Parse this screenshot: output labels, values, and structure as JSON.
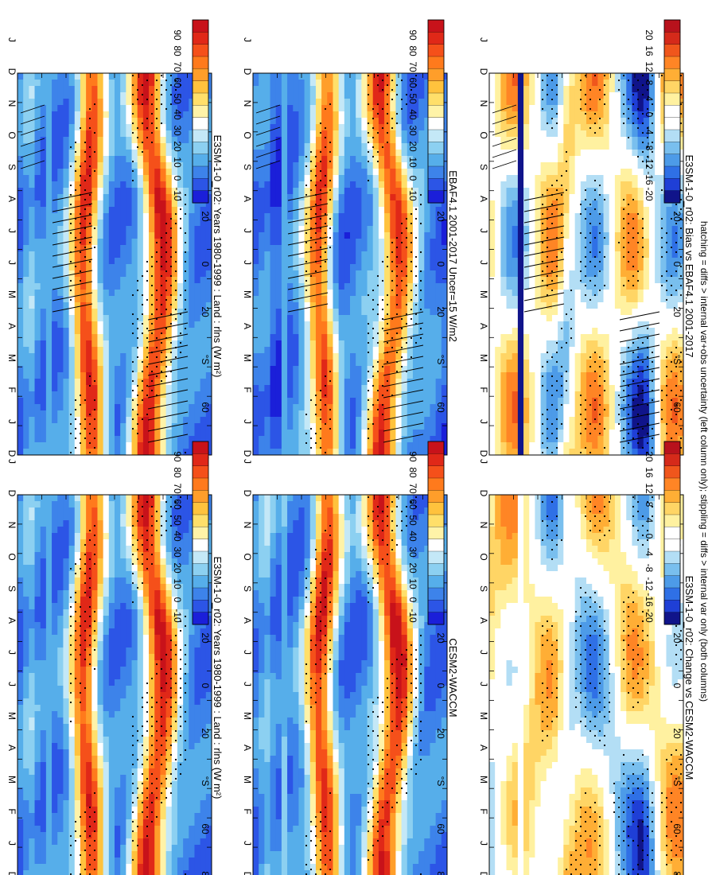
{
  "figure": {
    "footnote": "hatching = diffs > internal var+obs uncertainty (left column only); stippling = diffs > internal var only (both columns)"
  },
  "chart_data": [
    {
      "id": "model-left",
      "type": "heatmap",
      "title": "E3SM-1-0_r02: Years 1980-1999 : Land : rlns (W m²)",
      "xlabel": "month",
      "ylabel": "latitude",
      "months": [
        "D",
        "J",
        "F",
        "M",
        "A",
        "M",
        "J",
        "J",
        "A",
        "S",
        "O",
        "N",
        "D",
        "J"
      ],
      "lat_ticks": [
        "80",
        "60",
        "°N",
        "20",
        "0",
        "20",
        "°S",
        "60",
        "80"
      ],
      "colorbar": {
        "labels": [
          "90",
          "80",
          "70",
          "60",
          "50",
          "40",
          "30",
          "20",
          "10",
          "0",
          "-10"
        ],
        "range": [
          -15,
          100
        ]
      },
      "field": "mean",
      "stippling": true,
      "hatching": true
    },
    {
      "id": "obs-left",
      "type": "heatmap",
      "title": "EBAF4.1 2001-2017 Uncer=15 W/m2",
      "xlabel": "month",
      "ylabel": "latitude",
      "months": [
        "D",
        "J",
        "F",
        "M",
        "A",
        "M",
        "J",
        "J",
        "A",
        "S",
        "O",
        "N",
        "D",
        "J"
      ],
      "lat_ticks": [
        "80",
        "60",
        "°N",
        "20",
        "0",
        "20",
        "°S",
        "60",
        "80"
      ],
      "colorbar": {
        "labels": [
          "90",
          "80",
          "70",
          "60",
          "50",
          "40",
          "30",
          "20",
          "10",
          "0",
          "-10"
        ],
        "range": [
          -15,
          100
        ]
      },
      "field": "mean",
      "stippling": true,
      "hatching": true
    },
    {
      "id": "bias-left",
      "type": "heatmap",
      "title": "E3SM-1-0_r02: Bias vs EBAF4.1 2001-2017",
      "xlabel": "month",
      "ylabel": "latitude",
      "months": [
        "D",
        "J",
        "F",
        "M",
        "A",
        "M",
        "J",
        "J",
        "A",
        "S",
        "O",
        "N",
        "D",
        "J"
      ],
      "lat_ticks": [
        "80",
        "60",
        "°N",
        "20",
        "0",
        "20",
        "°S",
        "60",
        "80"
      ],
      "colorbar": {
        "labels": [
          "20",
          "16",
          "12",
          "8",
          "4",
          "0",
          "-4",
          "-8",
          "-12",
          "-16",
          "-20"
        ],
        "range": [
          -24,
          24
        ]
      },
      "field": "diff",
      "stippling": true,
      "hatching": true
    },
    {
      "id": "model-right",
      "type": "heatmap",
      "title": "E3SM-1-0_r02: Years 1980-1999 : Land : rlns (W m²)",
      "xlabel": "month",
      "ylabel": "latitude",
      "months": [
        "D",
        "J",
        "F",
        "M",
        "A",
        "M",
        "J",
        "J",
        "A",
        "S",
        "O",
        "N",
        "D",
        "J"
      ],
      "lat_ticks": [
        "80",
        "60",
        "°N",
        "20",
        "0",
        "20",
        "°S",
        "60",
        "80"
      ],
      "colorbar": {
        "labels": [
          "90",
          "80",
          "70",
          "60",
          "50",
          "40",
          "30",
          "20",
          "10",
          "0",
          "-10"
        ],
        "range": [
          -15,
          100
        ]
      },
      "field": "mean",
      "stippling": true,
      "hatching": false
    },
    {
      "id": "ref-right",
      "type": "heatmap",
      "title": "CESM2-WACCM",
      "xlabel": "month",
      "ylabel": "latitude",
      "months": [
        "D",
        "J",
        "F",
        "M",
        "A",
        "M",
        "J",
        "J",
        "A",
        "S",
        "O",
        "N",
        "D",
        "J"
      ],
      "lat_ticks": [
        "80",
        "60",
        "°N",
        "20",
        "0",
        "20",
        "°S",
        "60",
        "80"
      ],
      "colorbar": {
        "labels": [
          "90",
          "80",
          "70",
          "60",
          "50",
          "40",
          "30",
          "20",
          "10",
          "0",
          "-10"
        ],
        "range": [
          -15,
          100
        ]
      },
      "field": "mean",
      "stippling": true,
      "hatching": false
    },
    {
      "id": "change-right",
      "type": "heatmap",
      "title": "E3SM-1-0_r02: Change vs CESM2-WACCM",
      "xlabel": "month",
      "ylabel": "latitude",
      "months": [
        "D",
        "J",
        "F",
        "M",
        "A",
        "M",
        "J",
        "J",
        "A",
        "S",
        "O",
        "N",
        "D",
        "J"
      ],
      "lat_ticks": [
        "80",
        "60",
        "°N",
        "20",
        "0",
        "20",
        "°S",
        "60",
        "80"
      ],
      "colorbar": {
        "labels": [
          "20",
          "16",
          "12",
          "8",
          "4",
          "0",
          "-4",
          "-8",
          "-12",
          "-16",
          "-20"
        ],
        "range": [
          -24,
          24
        ]
      },
      "field": "diff",
      "stippling": true,
      "hatching": false
    }
  ]
}
